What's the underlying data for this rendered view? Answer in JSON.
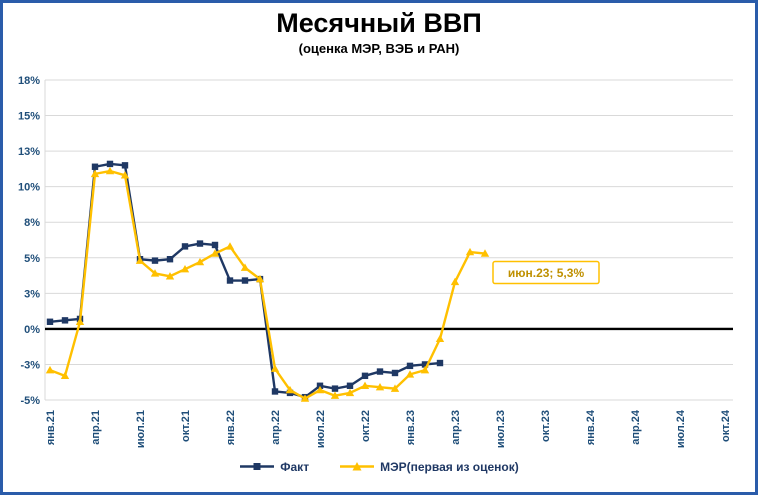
{
  "title": "Месячный ВВП",
  "subtitle": "(оценка МЭР, ВЭБ и РАН)",
  "colors": {
    "grid": "#D9D9D9",
    "zero_line": "#000000",
    "axis_label": "#1F4E79",
    "frame_border": "#2A5CAA",
    "annotation_border": "#FFC000",
    "annotation_text": "#BF9000",
    "legend_text": "#1F3864",
    "title_text": "#000000"
  },
  "chart_data": {
    "type": "line",
    "title": "Месячный ВВП",
    "subtitle": "(оценка МЭР, ВЭБ и РАН)",
    "y_axis": {
      "min": -5,
      "max": 17.5,
      "tick_values": [
        17.5,
        15,
        12.5,
        10,
        7.5,
        5,
        2.5,
        0,
        -2.5,
        -5
      ],
      "tick_labels": [
        "18%",
        "15%",
        "13%",
        "10%",
        "8%",
        "5%",
        "3%",
        "0%",
        "-3%",
        "-5%"
      ]
    },
    "x_axis": {
      "tick_labels": [
        "янв.21",
        "апр.21",
        "июл.21",
        "окт.21",
        "янв.22",
        "апр.22",
        "июл.22",
        "окт.22",
        "янв.23",
        "апр.23",
        "июл.23",
        "окт.23",
        "янв.24",
        "апр.24",
        "июл.24",
        "окт.24"
      ],
      "tick_every": 3,
      "n_points": 46
    },
    "series": [
      {
        "name": "Факт",
        "color": "#1F3864",
        "marker": "square",
        "values": [
          0.5,
          0.6,
          0.7,
          11.4,
          11.6,
          11.5,
          4.9,
          4.8,
          4.9,
          5.8,
          6.0,
          5.9,
          3.4,
          3.4,
          3.5,
          -4.4,
          -4.5,
          -4.8,
          -4.0,
          -4.2,
          -4.0,
          -3.3,
          -3.0,
          -3.1,
          -2.6,
          -2.5,
          -2.4,
          null,
          null,
          null,
          null,
          null,
          null,
          null,
          null,
          null,
          null,
          null,
          null,
          null,
          null,
          null,
          null,
          null,
          null,
          null
        ]
      },
      {
        "name": "МЭР(первая из оценок)",
        "color": "#FFC000",
        "marker": "triangle",
        "values": [
          -2.9,
          -3.3,
          0.5,
          10.9,
          11.1,
          10.8,
          4.8,
          3.9,
          3.7,
          4.2,
          4.7,
          5.3,
          5.8,
          4.3,
          3.5,
          -2.8,
          -4.3,
          -4.9,
          -4.3,
          -4.7,
          -4.5,
          -4.0,
          -4.1,
          -4.2,
          -3.2,
          -2.9,
          -0.7,
          3.3,
          5.4,
          5.3,
          null,
          null,
          null,
          null,
          null,
          null,
          null,
          null,
          null,
          null,
          null,
          null,
          null,
          null,
          null,
          null
        ]
      }
    ],
    "annotation": {
      "text": "июн.23; 5,3%",
      "point_index": 29,
      "value": 5.3
    },
    "legend_position": "bottom",
    "grid": true
  }
}
